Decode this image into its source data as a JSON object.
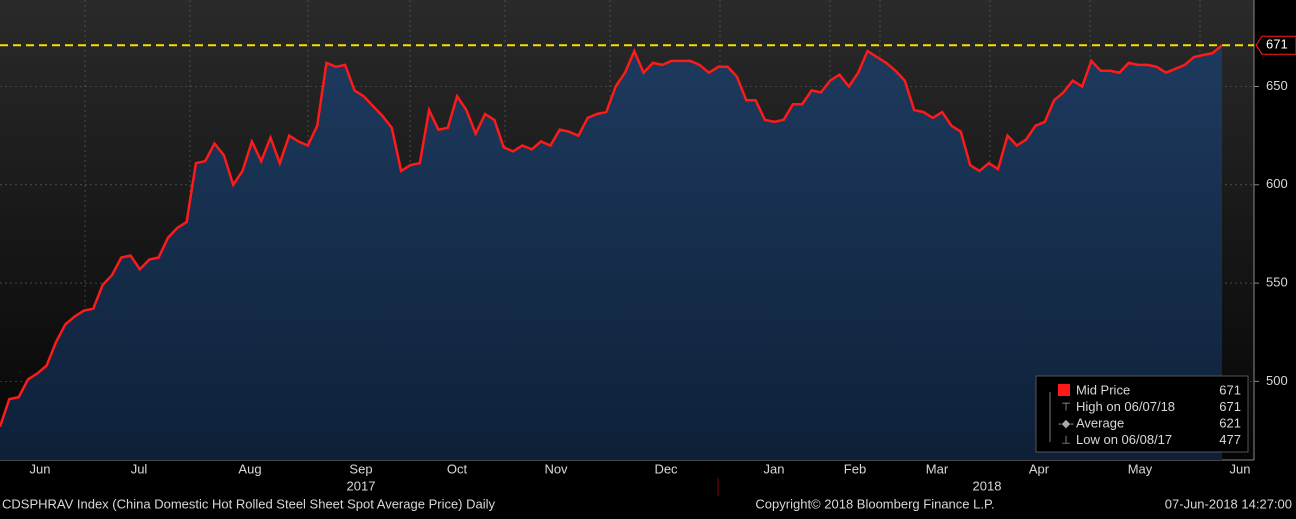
{
  "chart_data": {
    "type": "area",
    "series": [
      {
        "name": "Mid Price",
        "color": "#ff1a1a",
        "values": [
          477,
          491,
          492,
          501,
          504,
          508,
          520,
          529,
          533,
          536,
          537,
          549,
          554,
          563,
          564,
          557,
          562,
          563,
          573,
          578,
          581,
          611,
          612,
          621,
          615,
          600,
          607,
          622,
          612,
          624,
          611,
          625,
          622,
          620,
          630,
          662,
          660,
          661,
          648,
          645,
          640,
          635,
          629,
          607,
          610,
          611,
          638,
          628,
          629,
          645,
          638,
          626,
          636,
          633,
          619,
          617,
          620,
          618,
          622,
          620,
          628,
          627,
          625,
          634,
          636,
          637,
          650,
          657,
          668,
          657,
          662,
          661,
          663,
          663,
          663,
          661,
          657,
          660,
          660,
          655,
          643,
          643,
          633,
          632,
          633,
          641,
          641,
          648,
          647,
          653,
          656,
          650,
          657,
          668,
          665,
          662,
          658,
          653,
          638,
          637,
          634,
          637,
          630,
          627,
          610,
          607,
          611,
          608,
          625,
          620,
          623,
          630,
          632,
          643,
          647,
          653,
          650,
          663,
          658,
          658,
          657,
          662,
          661,
          661,
          660,
          657,
          659,
          661,
          665,
          666,
          667,
          671
        ]
      }
    ],
    "month_labels": [
      "Jun",
      "Jul",
      "Aug",
      "Sep",
      "Oct",
      "Nov",
      "Dec",
      "Jan",
      "Feb",
      "Mar",
      "Apr",
      "May",
      "Jun"
    ],
    "year_labels": [
      "2017",
      "2018"
    ],
    "ylim": [
      460,
      694
    ],
    "yticks": [
      500,
      550,
      600,
      650
    ],
    "legend": [
      {
        "label": "Mid Price",
        "value": 671
      },
      {
        "label": "High on 06/07/18",
        "value": 671
      },
      {
        "label": "Average",
        "value": 621
      },
      {
        "label": "Low on 06/08/17",
        "value": 477
      }
    ],
    "footer_left": "CDSPHRAV Index (China Domestic Hot Rolled Steel Sheet Spot Average Price)  Daily",
    "footer_center": "Copyright© 2018 Bloomberg Finance L.P.",
    "footer_right": "07-Jun-2018 14:27:00"
  }
}
